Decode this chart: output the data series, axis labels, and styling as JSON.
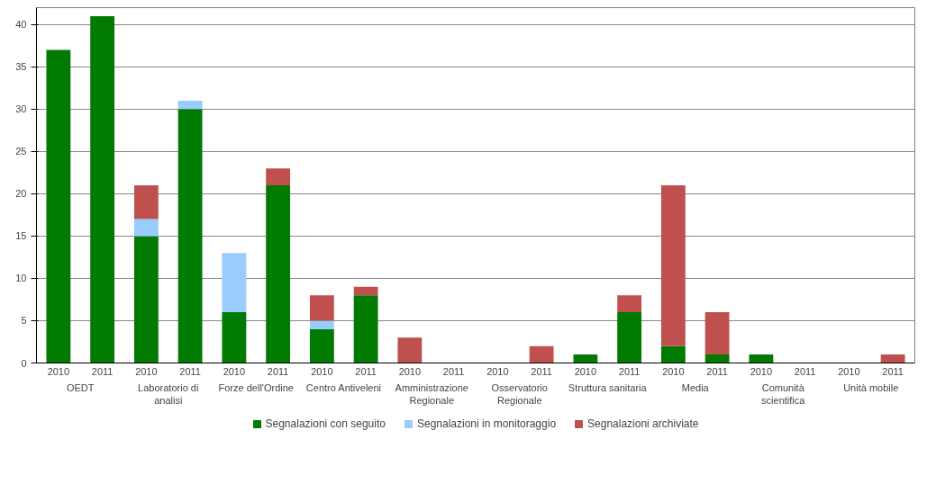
{
  "chart_data": {
    "type": "bar",
    "stacked": true,
    "categories": [
      "2010",
      "2011",
      "2010",
      "2011",
      "2010",
      "2011",
      "2010",
      "2011",
      "2010",
      "2011",
      "2010",
      "2011",
      "2010",
      "2011",
      "2010",
      "2011",
      "2010",
      "2011",
      "2010",
      "2011"
    ],
    "annotations": [
      "OEDT",
      "Laboratorio di analisi",
      "Forze dell'Ordine",
      "Centro Antiveleni",
      "Amministrazione Regionale",
      "Osservatorio Regionale",
      "Struttura sanitaria",
      "Media",
      "Comunità scientifica",
      "Unità mobile"
    ],
    "series": [
      {
        "name": "Segnalazioni con seguito",
        "color": "#007a00",
        "values": [
          37,
          41,
          15,
          30,
          6,
          21,
          4,
          8,
          0,
          0,
          0,
          0,
          1,
          6,
          2,
          1,
          1,
          0,
          0,
          0
        ]
      },
      {
        "name": "Segnalazioni in monitoraggio",
        "color": "#99ccff",
        "values": [
          0,
          0,
          2,
          1,
          7,
          0,
          1,
          0,
          0,
          0,
          0,
          0,
          0,
          0,
          0,
          0,
          0,
          0,
          0,
          0
        ]
      },
      {
        "name": "Segnalazioni archiviate",
        "color": "#c0504d",
        "values": [
          0,
          0,
          4,
          0,
          0,
          2,
          3,
          1,
          3,
          0,
          0,
          2,
          0,
          2,
          19,
          5,
          0,
          0,
          0,
          1
        ]
      }
    ],
    "ylim": [
      0,
      42
    ],
    "yticks": [
      0,
      5,
      10,
      15,
      20,
      25,
      30,
      35,
      40
    ],
    "grid": "y",
    "legend": "bottom"
  }
}
